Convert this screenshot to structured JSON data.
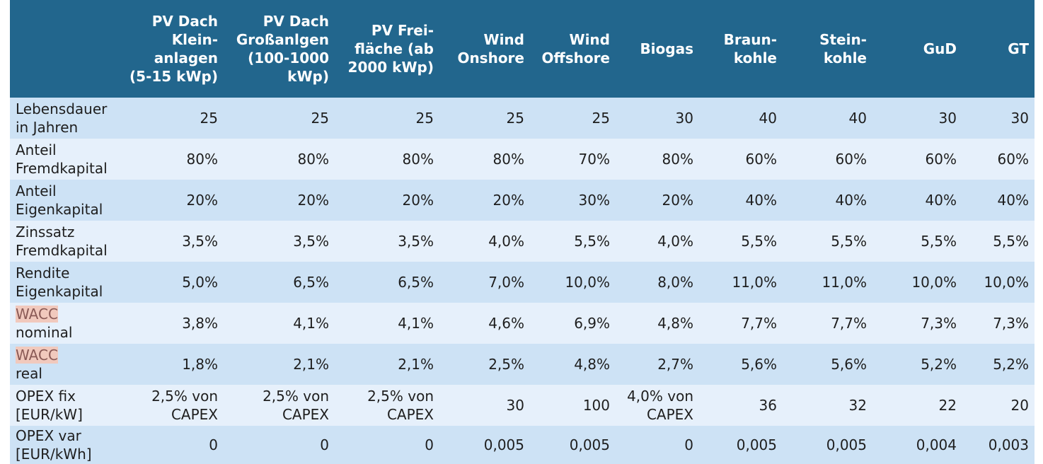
{
  "table": {
    "header": [
      "",
      "PV Dach\nKlein-\nanlagen\n(5-15 kWp)",
      "PV Dach\nGroßanlgen\n(100-1000\nkWp)",
      "PV Frei-\nfläche (ab\n2000 kWp)",
      "Wind\nOnshore",
      "Wind\nOffshore",
      "Biogas",
      "Braun-\nkohle",
      "Stein-\nkohle",
      "GuD",
      "GT"
    ],
    "rows": [
      {
        "label": [
          "Lebensdauer",
          "in Jahren"
        ],
        "highlight": false,
        "values": [
          "25",
          "25",
          "25",
          "25",
          "25",
          "30",
          "40",
          "40",
          "30",
          "30"
        ]
      },
      {
        "label": [
          "Anteil",
          "Fremdkapital"
        ],
        "highlight": false,
        "values": [
          "80%",
          "80%",
          "80%",
          "80%",
          "70%",
          "80%",
          "60%",
          "60%",
          "60%",
          "60%"
        ]
      },
      {
        "label": [
          "Anteil",
          "Eigenkapital"
        ],
        "highlight": false,
        "values": [
          "20%",
          "20%",
          "20%",
          "20%",
          "30%",
          "20%",
          "40%",
          "40%",
          "40%",
          "40%"
        ]
      },
      {
        "label": [
          "Zinssatz",
          "Fremdkapital"
        ],
        "highlight": false,
        "values": [
          "3,5%",
          "3,5%",
          "3,5%",
          "4,0%",
          "5,5%",
          "4,0%",
          "5,5%",
          "5,5%",
          "5,5%",
          "5,5%"
        ]
      },
      {
        "label": [
          "Rendite",
          "Eigenkapital"
        ],
        "highlight": false,
        "values": [
          "5,0%",
          "6,5%",
          "6,5%",
          "7,0%",
          "10,0%",
          "8,0%",
          "11,0%",
          "11,0%",
          "10,0%",
          "10,0%"
        ]
      },
      {
        "label": [
          "WACC",
          "nominal"
        ],
        "highlight": true,
        "values": [
          "3,8%",
          "4,1%",
          "4,1%",
          "4,6%",
          "6,9%",
          "4,8%",
          "7,7%",
          "7,7%",
          "7,3%",
          "7,3%"
        ]
      },
      {
        "label": [
          "WACC",
          "real"
        ],
        "highlight": true,
        "values": [
          "1,8%",
          "2,1%",
          "2,1%",
          "2,5%",
          "4,8%",
          "2,7%",
          "5,6%",
          "5,6%",
          "5,2%",
          "5,2%"
        ]
      },
      {
        "label": [
          "OPEX fix",
          "[EUR/kW]"
        ],
        "highlight": false,
        "values": [
          "2,5% von\nCAPEX",
          "2,5% von\nCAPEX",
          "2,5% von\nCAPEX",
          "30",
          "100",
          "4,0% von\nCAPEX",
          "36",
          "32",
          "22",
          "20"
        ]
      },
      {
        "label": [
          "OPEX var",
          "[EUR/kWh]"
        ],
        "highlight": false,
        "values": [
          "0",
          "0",
          "0",
          "0,005",
          "0,005",
          "0",
          "0,005",
          "0,005",
          "0,004",
          "0,003"
        ]
      }
    ]
  },
  "colors": {
    "header_bg": "#22668d",
    "row_dark": "#cde2f5",
    "row_light": "#e6f0fb",
    "wacc_highlight": "#f1c9bd"
  }
}
